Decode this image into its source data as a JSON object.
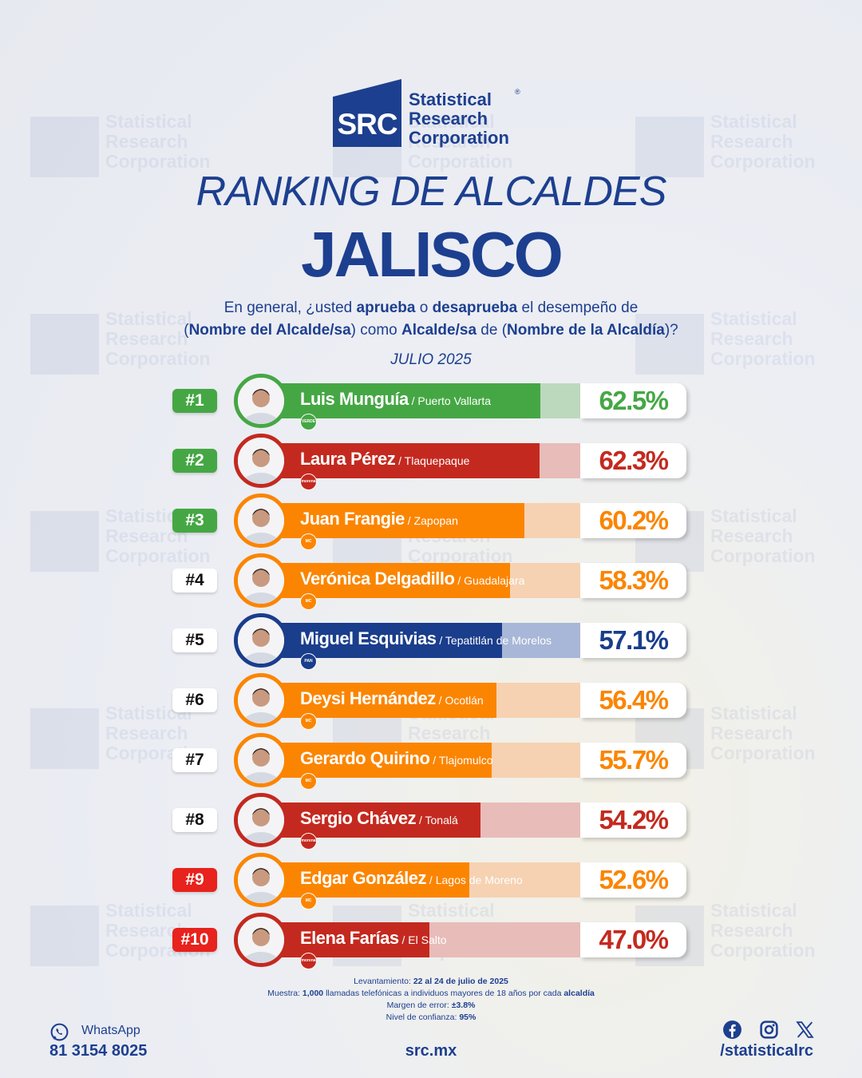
{
  "brand": {
    "logo_abbr": "SRC",
    "name_lines": [
      "Statistical",
      "Research",
      "Corporation"
    ],
    "registered": "®"
  },
  "header": {
    "title": "RANKING DE ALCALDES",
    "subtitle": "JALISCO",
    "question_parts": [
      {
        "t": "En general, ¿usted ",
        "b": false
      },
      {
        "t": "aprueba",
        "b": true
      },
      {
        "t": " o ",
        "b": false
      },
      {
        "t": "desaprueba",
        "b": true
      },
      {
        "t": " el desempeño de",
        "b": false
      },
      {
        "t": "\n(",
        "b": false
      },
      {
        "t": "Nombre del Alcalde/sa",
        "b": true
      },
      {
        "t": ") como ",
        "b": false
      },
      {
        "t": "Alcalde/sa",
        "b": true
      },
      {
        "t": " de (",
        "b": false
      },
      {
        "t": "Nombre de la Alcaldía",
        "b": true
      },
      {
        "t": ")?",
        "b": false
      }
    ],
    "month": "JULIO 2025"
  },
  "colors": {
    "navy": "#1d3f8f",
    "green": "#45a744",
    "red_morena": "#c4291f",
    "orange_mc": "#fb8500",
    "blue_pan": "#1a3d8c",
    "badge_white": "#ffffff",
    "badge_red": "#e8221c"
  },
  "party_styles": {
    "PVEM": {
      "bar": "#45a744",
      "track": "#bcd9bd",
      "text": "#45a744",
      "icon_label": "VERDE"
    },
    "MORENA": {
      "bar": "#c4291f",
      "track": "#e8bcb9",
      "text": "#c4291f",
      "icon_label": "morena"
    },
    "MC": {
      "bar": "#fb8500",
      "track": "#f6d2b2",
      "text": "#fb8500",
      "icon_label": "MC"
    },
    "PAN": {
      "bar": "#1a3d8c",
      "track": "#a8b7d8",
      "text": "#1a3d8c",
      "icon_label": "PAN"
    }
  },
  "chart_data": {
    "type": "bar",
    "orientation": "horizontal",
    "title": "RANKING DE ALCALDES",
    "subtitle": "JALISCO",
    "value_unit": "%",
    "xlim": [
      0,
      100
    ],
    "categories": [
      "Luis Munguía",
      "Laura Pérez",
      "Juan Frangie",
      "Verónica Delgadillo",
      "Miguel Esquivias",
      "Deysi Hernández",
      "Gerardo Quirino",
      "Sergio Chávez",
      "Edgar González",
      "Elena Farías"
    ],
    "values": [
      62.5,
      62.3,
      60.2,
      58.3,
      57.1,
      56.4,
      55.7,
      54.2,
      52.6,
      47.0
    ],
    "entries": [
      {
        "rank": "#1",
        "name": "Luis Munguía",
        "place": "/ Puerto Vallarta",
        "value": 62.5,
        "label": "62.5%",
        "party": "PVEM",
        "badge": "green"
      },
      {
        "rank": "#2",
        "name": "Laura Pérez",
        "place": "/ Tlaquepaque",
        "value": 62.3,
        "label": "62.3%",
        "party": "MORENA",
        "badge": "green"
      },
      {
        "rank": "#3",
        "name": "Juan Frangie",
        "place": "/ Zapopan",
        "value": 60.2,
        "label": "60.2%",
        "party": "MC",
        "badge": "green"
      },
      {
        "rank": "#4",
        "name": "Verónica Delgadillo",
        "place": "/ Guadalajara",
        "value": 58.3,
        "label": "58.3%",
        "party": "MC",
        "badge": "white"
      },
      {
        "rank": "#5",
        "name": "Miguel Esquivias",
        "place": "/ Tepatitlán de Morelos",
        "value": 57.1,
        "label": "57.1%",
        "party": "PAN",
        "badge": "white"
      },
      {
        "rank": "#6",
        "name": "Deysi Hernández",
        "place": "/ Ocotlán",
        "value": 56.4,
        "label": "56.4%",
        "party": "MC",
        "badge": "white"
      },
      {
        "rank": "#7",
        "name": "Gerardo Quirino",
        "place": "/ Tlajomulco",
        "value": 55.7,
        "label": "55.7%",
        "party": "MC",
        "badge": "white"
      },
      {
        "rank": "#8",
        "name": "Sergio Chávez",
        "place": "/ Tonalá",
        "value": 54.2,
        "label": "54.2%",
        "party": "MORENA",
        "badge": "white"
      },
      {
        "rank": "#9",
        "name": "Edgar González",
        "place": "/ Lagos de Moreno",
        "value": 52.6,
        "label": "52.6%",
        "party": "MC",
        "badge": "red"
      },
      {
        "rank": "#10",
        "name": "Elena Farías",
        "place": "/ El Salto",
        "value": 47.0,
        "label": "47.0%",
        "party": "MORENA",
        "badge": "red"
      }
    ]
  },
  "footnotes": [
    [
      {
        "t": "Levantamiento: ",
        "b": false
      },
      {
        "t": "22 al 24 de julio de 2025",
        "b": true
      }
    ],
    [
      {
        "t": "Muestra: ",
        "b": false
      },
      {
        "t": "1,000",
        "b": true
      },
      {
        "t": " llamadas telefónicas a individuos mayores de 18 años por cada ",
        "b": false
      },
      {
        "t": "alcaldía",
        "b": true
      }
    ],
    [
      {
        "t": "Margen de error: ",
        "b": false
      },
      {
        "t": "±3.8%",
        "b": true
      }
    ],
    [
      {
        "t": "Nivel de confianza: ",
        "b": false
      },
      {
        "t": "95%",
        "b": true
      }
    ]
  ],
  "footer": {
    "whatsapp_label": "WhatsApp",
    "whatsapp_number": "81 3154 8025",
    "website": "src.mx",
    "social_handle": "/statisticalrc",
    "icons": [
      "whatsapp-icon",
      "facebook-icon",
      "instagram-icon",
      "x-icon"
    ]
  }
}
